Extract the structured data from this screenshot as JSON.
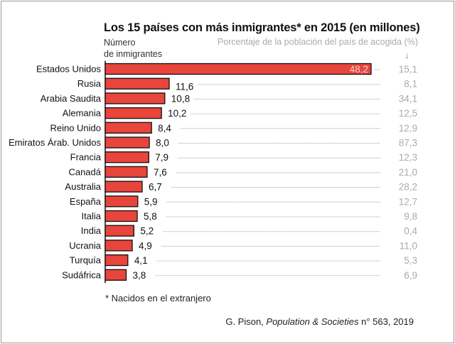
{
  "chart_data": {
    "type": "bar",
    "orientation": "horizontal",
    "title": "Los 15 países con más inmigrantes* en 2015 (en millones)",
    "left_label": [
      "Número",
      "de inmigrantes"
    ],
    "right_label": "Porcentaje de la población del país de acogida (%)",
    "categories": [
      "Estados Unidos",
      "Rusia",
      "Arabia Saudita",
      "Alemania",
      "Reino Unido",
      "Emiratos Árab. Unidos",
      "Francia",
      "Canadá",
      "Australia",
      "España",
      "Italia",
      "India",
      "Ucrania",
      "Turquía",
      "Sudáfrica"
    ],
    "values": [
      48.2,
      11.6,
      10.8,
      10.2,
      8.4,
      8.0,
      7.9,
      7.6,
      6.7,
      5.9,
      5.8,
      5.2,
      4.9,
      4.1,
      3.8
    ],
    "value_labels": [
      "48,2",
      "11,6",
      "10,8",
      "10,2",
      "8,4",
      "8,0",
      "7,9",
      "7,6",
      "6,7",
      "5,9",
      "5,8",
      "5,2",
      "4,9",
      "4,1",
      "3,8"
    ],
    "percent_labels": [
      "15,1",
      "8,1",
      "34,1",
      "12,5",
      "12,9",
      "87,3",
      "12,3",
      "21,0",
      "28,2",
      "12,7",
      "9,8",
      "0,4",
      "11,0",
      "5,3",
      "6,9"
    ],
    "xlim": [
      0,
      48.2
    ],
    "grid": false,
    "colors": {
      "bar": "#e8453c",
      "bar_outline": "#111111",
      "percent_text": "#aaaaaa"
    }
  },
  "footnote": "* Nacidos en el extranjero",
  "source": {
    "prefix": "G. Pison, ",
    "journal": "Population & Societies",
    "suffix": " n° 563, 2019"
  }
}
